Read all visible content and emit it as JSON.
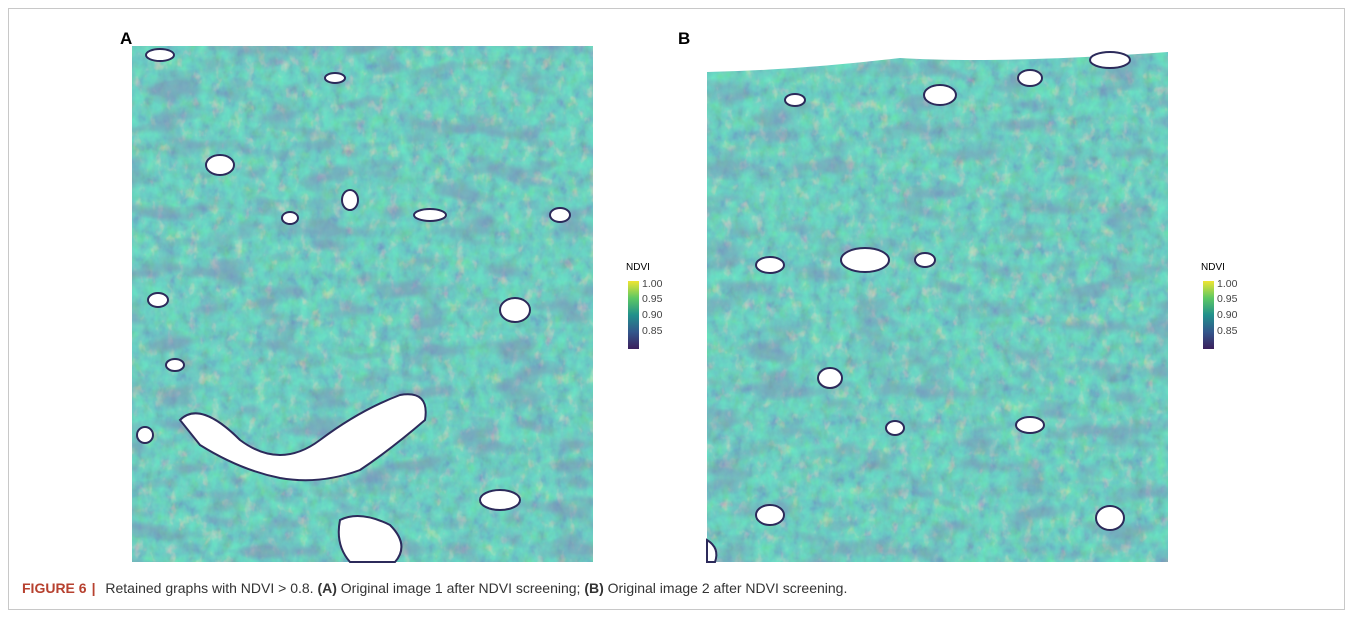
{
  "figure": {
    "panels": [
      {
        "label": "A",
        "legend": {
          "title": "NDVI",
          "ticks": [
            "1.00",
            "0.95",
            "0.90",
            "0.85"
          ]
        }
      },
      {
        "label": "B",
        "legend": {
          "title": "NDVI",
          "ticks": [
            "1.00",
            "0.95",
            "0.90",
            "0.85"
          ]
        }
      }
    ],
    "caption": {
      "label": "FIGURE 6",
      "separator": "|",
      "parts": [
        "Retained graphs with NDVI > 0.8.",
        "(A)",
        "Original image 1 after NDVI screening;",
        "(B)",
        "Original image 2 after NDVI screening."
      ]
    }
  }
}
